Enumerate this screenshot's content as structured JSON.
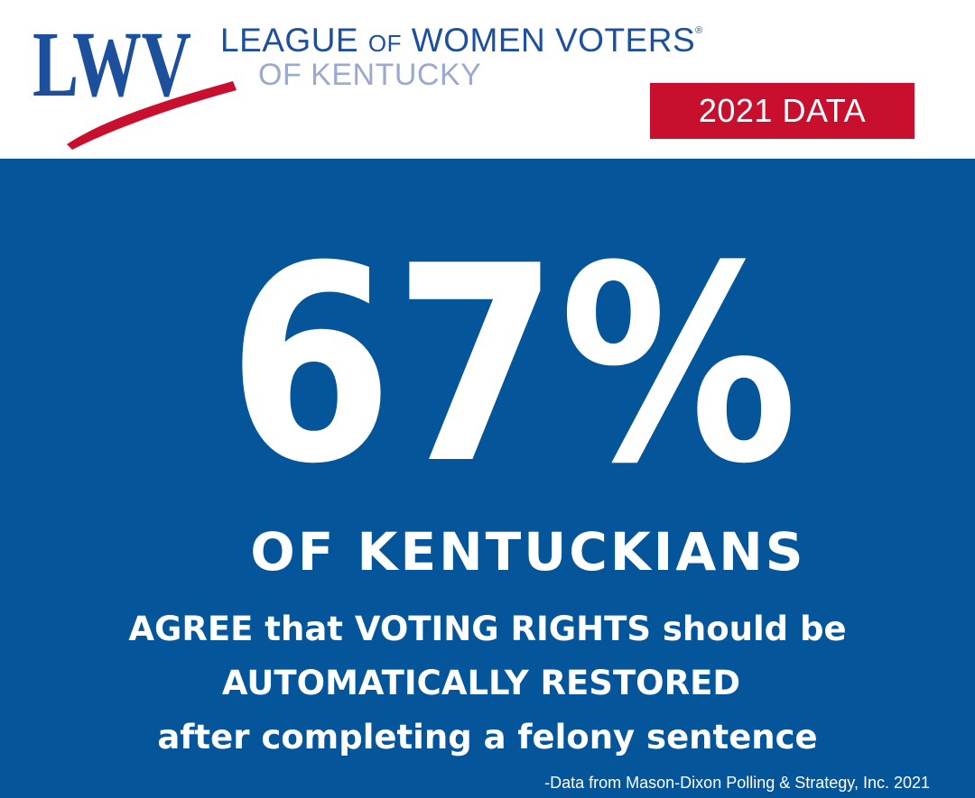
{
  "header": {
    "logo_text": "LWV",
    "org_name": {
      "league": "LEAGUE",
      "of": "OF",
      "women_voters": "WOMEN VOTERS",
      "registered_mark": "®",
      "line2": "OF KENTUCKY"
    },
    "badge_label": "2021 DATA"
  },
  "main": {
    "stat_value": "67%",
    "headline": "OF KENTUCKIANS",
    "statement_lines": [
      "AGREE that VOTING RIGHTS should be",
      "AUTOMATICALLY RESTORED",
      "after completing a felony sentence"
    ],
    "source": "-Data from Mason-Dixon Polling & Strategy, Inc. 2021"
  },
  "colors": {
    "brand_blue": "#1c4f9c",
    "light_blue": "#9aa9cc",
    "panel_blue": "#04559a",
    "accent_red": "#c8102e",
    "text_white": "#ffffff"
  }
}
